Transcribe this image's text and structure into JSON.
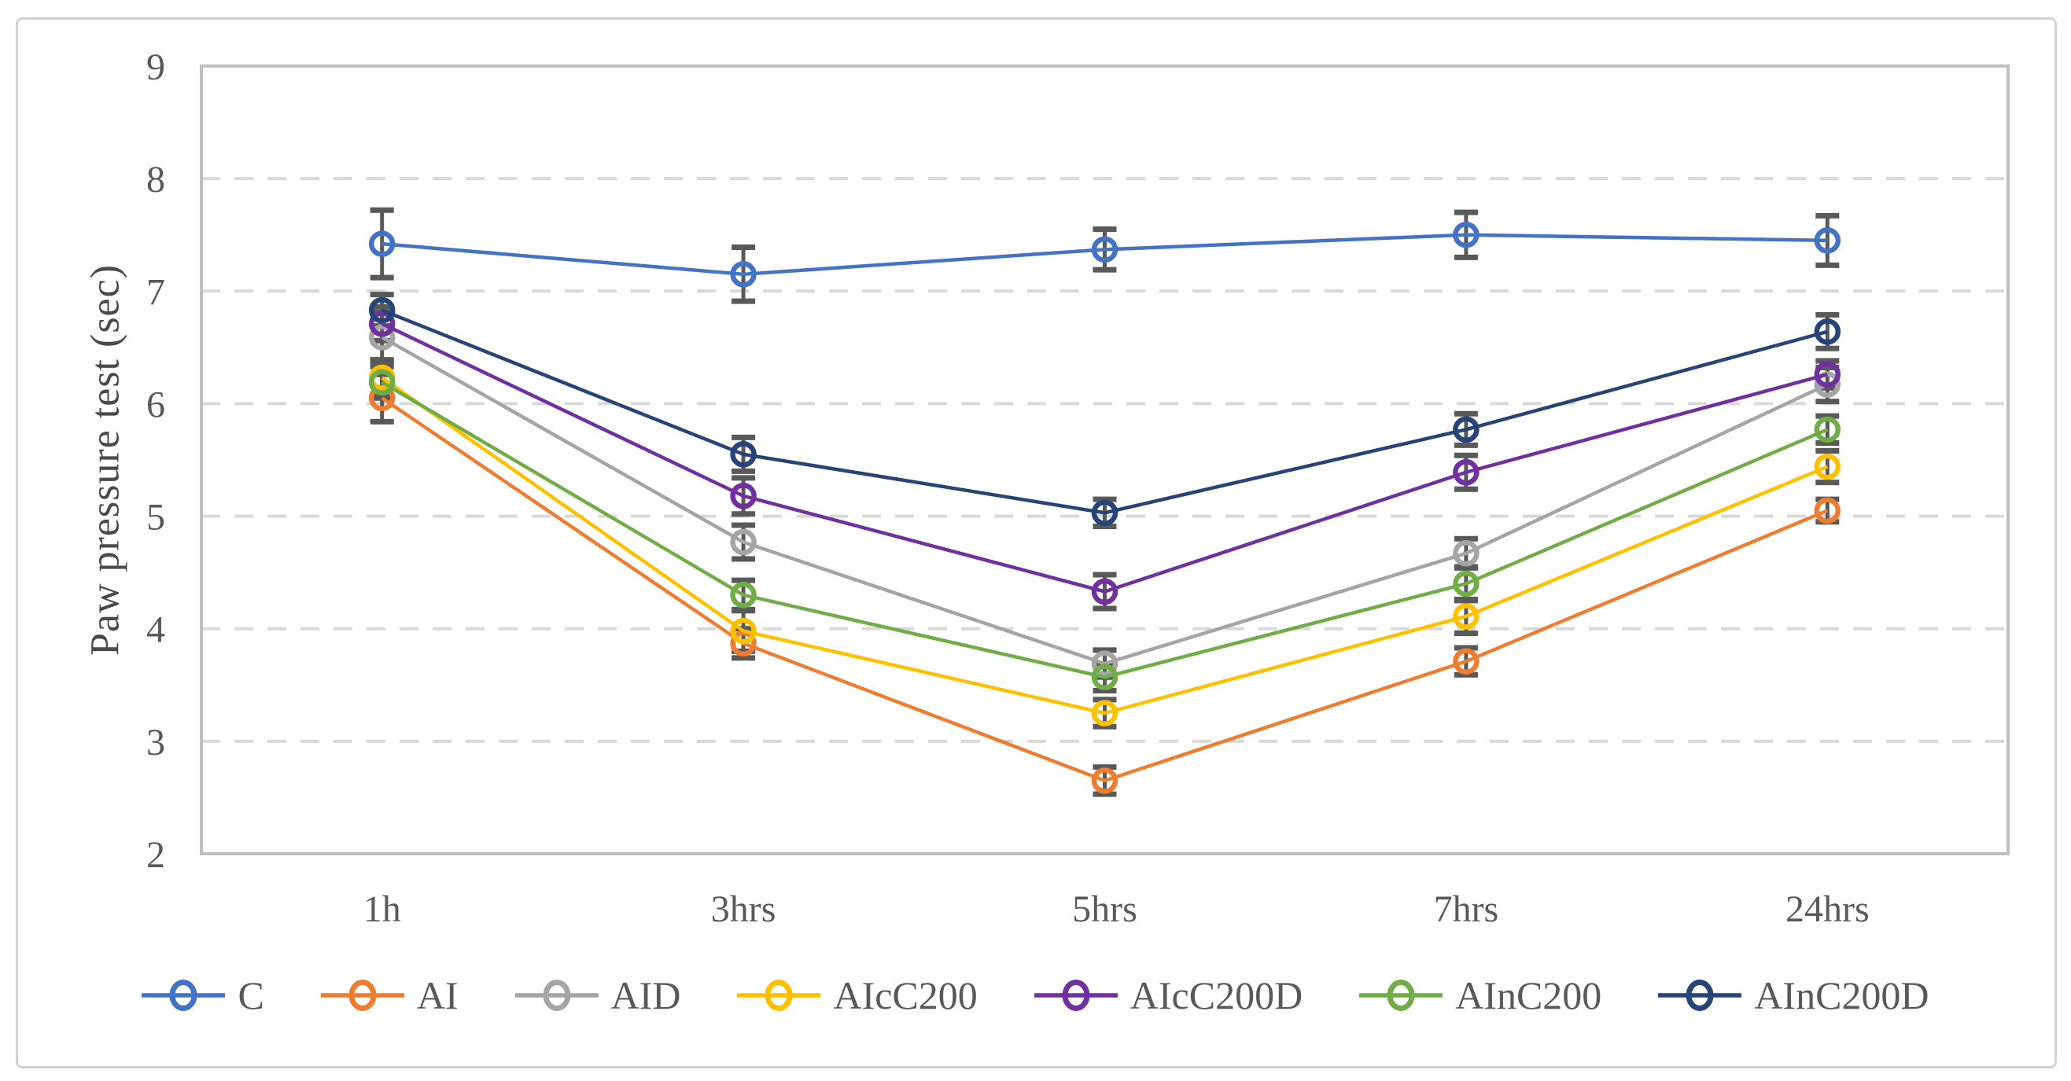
{
  "figure": {
    "y_axis_title": "Paw pressure test (sec)"
  },
  "colors": {
    "error_bar": "#595959",
    "gridline": "#d9d9d9",
    "plot_border": "#bfbfbf",
    "tick_text": "#595959",
    "figure_border": "#d2d2d2"
  },
  "chart_data": {
    "type": "line",
    "title": "",
    "xlabel": "",
    "ylabel": "Paw pressure test (sec)",
    "categories": [
      "1h",
      "3hrs",
      "5hrs",
      "7hrs",
      "24hrs"
    ],
    "yticks": [
      2,
      3,
      4,
      5,
      6,
      7,
      8,
      9
    ],
    "ylim": [
      2,
      9
    ],
    "grid": "horizontal-dashed",
    "legend_position": "bottom",
    "marker": "open-circle",
    "error_bars": true,
    "series": [
      {
        "name": "C",
        "color": "#4472C4",
        "values": [
          7.42,
          7.15,
          7.37,
          7.5,
          7.45
        ],
        "errors": [
          0.3,
          0.24,
          0.18,
          0.2,
          0.22
        ]
      },
      {
        "name": "AI",
        "color": "#ED7D31",
        "values": [
          6.05,
          3.87,
          2.65,
          3.71,
          5.05
        ],
        "errors": [
          0.21,
          0.13,
          0.12,
          0.12,
          0.1
        ]
      },
      {
        "name": "AID",
        "color": "#A5A5A5",
        "values": [
          6.59,
          4.77,
          3.69,
          4.67,
          6.17
        ],
        "errors": [
          0.22,
          0.15,
          0.12,
          0.13,
          0.15
        ]
      },
      {
        "name": "AIcC200",
        "color": "#FFC000",
        "values": [
          6.23,
          3.98,
          3.25,
          4.11,
          5.44
        ],
        "errors": [
          0.16,
          0.18,
          0.12,
          0.15,
          0.14
        ]
      },
      {
        "name": "AIcC200D",
        "color": "#7030A0",
        "values": [
          6.71,
          5.18,
          4.33,
          5.39,
          6.26
        ],
        "errors": [
          0.15,
          0.16,
          0.15,
          0.15,
          0.12
        ]
      },
      {
        "name": "AInC200",
        "color": "#70AD47",
        "values": [
          6.19,
          4.3,
          3.57,
          4.4,
          5.77
        ],
        "errors": [
          0.14,
          0.13,
          0.12,
          0.15,
          0.12
        ]
      },
      {
        "name": "AInC200D",
        "color": "#264478",
        "values": [
          6.83,
          5.55,
          5.03,
          5.77,
          6.64
        ],
        "errors": [
          0.14,
          0.15,
          0.12,
          0.14,
          0.15
        ]
      }
    ]
  }
}
